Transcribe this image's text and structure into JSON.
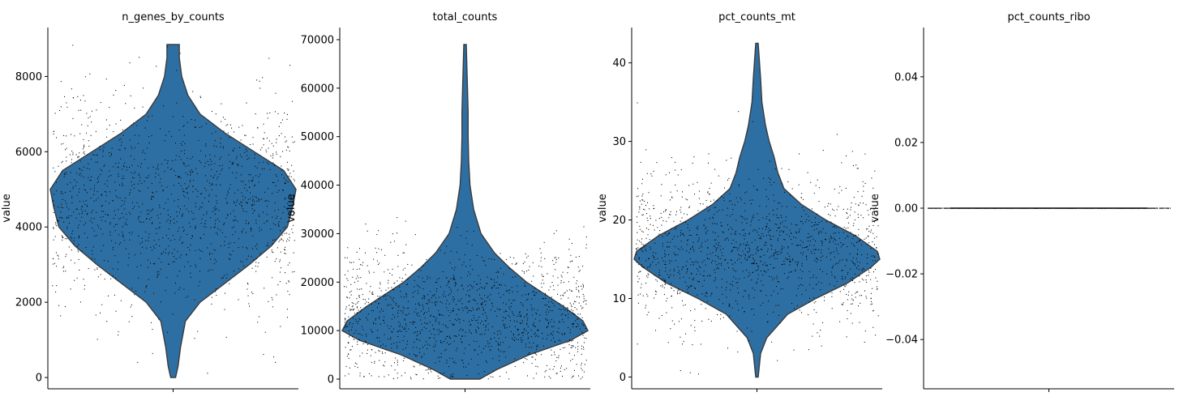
{
  "figure": {
    "background": "#ffffff",
    "violin_color": "#2e6fa3",
    "violin_edge": "#3a3a3a",
    "point_color": "#000000"
  },
  "chart_data": [
    {
      "type": "violin",
      "title": "n_genes_by_counts",
      "ylabel": "value",
      "ylim": [
        -300,
        9300
      ],
      "yticks": [
        0,
        2000,
        4000,
        6000,
        8000
      ],
      "ytick_labels": [
        "0",
        "2000",
        "4000",
        "6000",
        "8000"
      ],
      "range": [
        0,
        8850
      ],
      "density": [
        [
          0,
          0.02
        ],
        [
          300,
          0.04
        ],
        [
          800,
          0.06
        ],
        [
          1500,
          0.1
        ],
        [
          2000,
          0.22
        ],
        [
          2500,
          0.42
        ],
        [
          3000,
          0.62
        ],
        [
          3500,
          0.8
        ],
        [
          4000,
          0.93
        ],
        [
          4500,
          0.97
        ],
        [
          5000,
          1.0
        ],
        [
          5500,
          0.9
        ],
        [
          6000,
          0.66
        ],
        [
          6500,
          0.42
        ],
        [
          7000,
          0.22
        ],
        [
          7500,
          0.12
        ],
        [
          8000,
          0.07
        ],
        [
          8500,
          0.05
        ],
        [
          8850,
          0.05
        ]
      ],
      "points": {
        "count": 1400,
        "center": 4600,
        "spread": 1400,
        "min": 0,
        "max": 8850
      }
    },
    {
      "type": "violin",
      "title": "total_counts",
      "ylabel": "value",
      "ylim": [
        -2000,
        72500
      ],
      "yticks": [
        0,
        10000,
        20000,
        30000,
        40000,
        50000,
        60000,
        70000
      ],
      "ytick_labels": [
        "0",
        "10000",
        "20000",
        "30000",
        "40000",
        "50000",
        "60000",
        "70000"
      ],
      "range": [
        0,
        69000
      ],
      "density": [
        [
          0,
          0.12
        ],
        [
          2000,
          0.26
        ],
        [
          5000,
          0.52
        ],
        [
          8000,
          0.86
        ],
        [
          10000,
          1.0
        ],
        [
          12000,
          0.96
        ],
        [
          15000,
          0.8
        ],
        [
          18000,
          0.62
        ],
        [
          20000,
          0.5
        ],
        [
          23000,
          0.36
        ],
        [
          26000,
          0.24
        ],
        [
          30000,
          0.13
        ],
        [
          35000,
          0.07
        ],
        [
          40000,
          0.04
        ],
        [
          45000,
          0.03
        ],
        [
          50000,
          0.025
        ],
        [
          55000,
          0.025
        ],
        [
          60000,
          0.02
        ],
        [
          69000,
          0.01
        ]
      ],
      "points": {
        "count": 1400,
        "center": 13000,
        "spread": 7000,
        "min": 0,
        "max": 69000
      }
    },
    {
      "type": "violin",
      "title": "pct_counts_mt",
      "ylabel": "value",
      "ylim": [
        -1.5,
        44.5
      ],
      "yticks": [
        0,
        10,
        20,
        30,
        40
      ],
      "ytick_labels": [
        "0",
        "10",
        "20",
        "30",
        "40"
      ],
      "range": [
        0,
        42.5
      ],
      "density": [
        [
          0,
          0.01
        ],
        [
          3,
          0.03
        ],
        [
          5,
          0.08
        ],
        [
          8,
          0.25
        ],
        [
          10,
          0.48
        ],
        [
          12,
          0.74
        ],
        [
          14,
          0.93
        ],
        [
          15,
          1.0
        ],
        [
          16,
          0.98
        ],
        [
          18,
          0.8
        ],
        [
          20,
          0.56
        ],
        [
          22,
          0.36
        ],
        [
          24,
          0.22
        ],
        [
          26,
          0.17
        ],
        [
          28,
          0.14
        ],
        [
          30,
          0.1
        ],
        [
          32,
          0.07
        ],
        [
          35,
          0.04
        ],
        [
          38,
          0.03
        ],
        [
          42.5,
          0.01
        ]
      ],
      "points": {
        "count": 1400,
        "center": 16,
        "spread": 5,
        "min": 0,
        "max": 42.5
      }
    },
    {
      "type": "violin",
      "title": "pct_counts_ribo",
      "ylabel": "value",
      "ylim": [
        -0.055,
        0.055
      ],
      "yticks": [
        -0.04,
        -0.02,
        0.0,
        0.02,
        0.04
      ],
      "ytick_labels": [
        "−0.04",
        "−0.02",
        "0.00",
        "0.02",
        "0.04"
      ],
      "range": [
        0,
        0
      ],
      "density": [],
      "points": {
        "count": 600,
        "center": 0,
        "spread": 0,
        "min": 0,
        "max": 0
      }
    }
  ]
}
